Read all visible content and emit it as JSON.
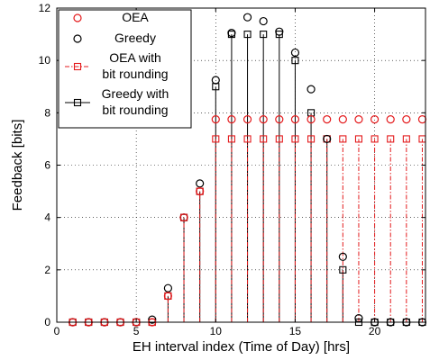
{
  "chart_data": {
    "type": "scatter",
    "xlabel": "EH interval index (Time of Day) [hrs]",
    "ylabel": "Feedback [bits]",
    "xlim": [
      0,
      23.2
    ],
    "ylim": [
      0,
      12
    ],
    "x_ticks": [
      0,
      5,
      10,
      15,
      20
    ],
    "y_ticks": [
      0,
      2,
      4,
      6,
      8,
      10,
      12
    ],
    "x_tick_labels": [
      "0",
      "5",
      "10",
      "15",
      "20"
    ],
    "y_tick_labels": [
      "0",
      "2",
      "4",
      "6",
      "8",
      "10",
      "12"
    ],
    "grid": true,
    "legend_position": "top-left",
    "x": [
      1,
      2,
      3,
      4,
      5,
      6,
      7,
      8,
      9,
      10,
      11,
      12,
      13,
      14,
      15,
      16,
      17,
      18,
      19,
      20,
      21,
      22,
      23
    ],
    "series": [
      {
        "name": "OEA",
        "marker": "circle",
        "color": "#e41a1c",
        "values": [
          0,
          0,
          0,
          0,
          0,
          0,
          1,
          4,
          5,
          7.75,
          7.75,
          7.75,
          7.75,
          7.75,
          7.75,
          7.75,
          7.75,
          7.75,
          7.75,
          7.75,
          7.75,
          7.75,
          7.75
        ]
      },
      {
        "name": "Greedy",
        "marker": "circle",
        "color": "#000000",
        "values": [
          0,
          0,
          0,
          0,
          0,
          0.1,
          1.3,
          4,
          5.3,
          9.25,
          11.05,
          11.65,
          11.5,
          11.1,
          10.3,
          8.9,
          7,
          2.5,
          0.15,
          0,
          0,
          0,
          0
        ]
      },
      {
        "name": "OEA with bit rounding",
        "marker": "square",
        "line": "dash-dot",
        "color": "#e41a1c",
        "values": [
          0,
          0,
          0,
          0,
          0,
          0,
          1,
          4,
          5,
          7,
          7,
          7,
          7,
          7,
          7,
          7,
          7,
          7,
          7,
          7,
          7,
          7,
          7
        ]
      },
      {
        "name": "Greedy with bit rounding",
        "marker": "square",
        "line": "solid",
        "color": "#000000",
        "values": [
          0,
          0,
          0,
          0,
          0,
          0,
          1,
          4,
          5,
          9,
          11,
          11,
          11,
          11,
          10,
          8,
          7,
          2,
          0,
          0,
          0,
          0,
          0
        ]
      }
    ],
    "legend": {
      "entries": [
        {
          "series": 0,
          "lines": [
            "OEA"
          ]
        },
        {
          "series": 1,
          "lines": [
            "Greedy"
          ]
        },
        {
          "series": 2,
          "lines": [
            "OEA with",
            "bit rounding"
          ]
        },
        {
          "series": 3,
          "lines": [
            "Greedy with",
            "bit rounding"
          ]
        }
      ]
    }
  }
}
